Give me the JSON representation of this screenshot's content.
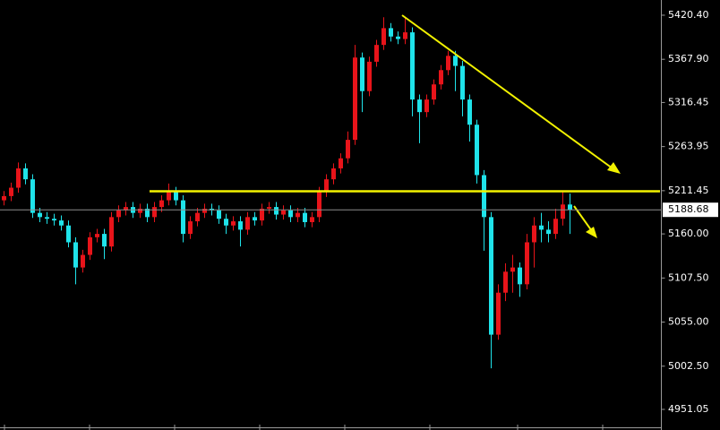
{
  "chart_data": {
    "type": "candlestick",
    "up_color": "#e8141a",
    "down_color": "#1fe3ea",
    "ylim": [
      4926.5,
      5438.5
    ],
    "yticks": [
      {
        "value": 5420.4,
        "label": "5420.40"
      },
      {
        "value": 5367.9,
        "label": "5367.90"
      },
      5316.45,
      5263.95,
      5211.45,
      {
        "value": 5160,
        "label": "5160.00"
      },
      {
        "value": 5107.5,
        "label": "5107.50"
      },
      {
        "value": 5055,
        "label": "5055.00"
      },
      {
        "value": 5002.5,
        "label": "5002.50"
      },
      4951.05
    ],
    "last_price": 5188.68,
    "open": [
      5200,
      5205,
      5215,
      5238,
      5225,
      5185,
      5180,
      5178,
      5176,
      5170,
      5150,
      5120,
      5135,
      5156,
      5160,
      5145,
      5180,
      5188,
      5192,
      5185,
      5190,
      5180,
      5192,
      5200,
      5210,
      5200,
      5160,
      5175,
      5185,
      5190,
      5188,
      5178,
      5170,
      5175,
      5165,
      5180,
      5176,
      5190,
      5192,
      5183,
      5188,
      5180,
      5185,
      5174,
      5180,
      5210,
      5225,
      5238,
      5250,
      5272,
      5370,
      5330,
      5365,
      5385,
      5405,
      5395,
      5392,
      5400,
      5320,
      5305,
      5320,
      5338,
      5355,
      5372,
      5360,
      5320,
      5290,
      5230,
      5180,
      5040,
      5090,
      5115,
      5120,
      5100,
      5150,
      5170,
      5165,
      5160,
      5178,
      5195
    ],
    "high": [
      5211,
      5221,
      5245,
      5244,
      5231,
      5191,
      5186,
      5184,
      5182,
      5176,
      5156,
      5141,
      5162,
      5166,
      5166,
      5186,
      5194,
      5198,
      5198,
      5196,
      5196,
      5198,
      5206,
      5220,
      5216,
      5206,
      5181,
      5191,
      5196,
      5196,
      5194,
      5184,
      5181,
      5181,
      5186,
      5186,
      5196,
      5198,
      5198,
      5194,
      5194,
      5191,
      5191,
      5186,
      5216,
      5231,
      5244,
      5256,
      5282,
      5385,
      5376,
      5371,
      5391,
      5418,
      5411,
      5401,
      5418,
      5406,
      5326,
      5326,
      5344,
      5361,
      5378,
      5378,
      5366,
      5326,
      5296,
      5236,
      5186,
      5100,
      5125,
      5135,
      5126,
      5160,
      5180,
      5185,
      5175,
      5190,
      5210,
      5208
    ],
    "low": [
      5194,
      5199,
      5209,
      5219,
      5179,
      5174,
      5172,
      5170,
      5164,
      5144,
      5100,
      5114,
      5129,
      5150,
      5130,
      5139,
      5174,
      5182,
      5179,
      5179,
      5174,
      5174,
      5186,
      5194,
      5194,
      5150,
      5154,
      5169,
      5179,
      5182,
      5172,
      5160,
      5164,
      5145,
      5159,
      5170,
      5170,
      5184,
      5177,
      5177,
      5174,
      5174,
      5168,
      5168,
      5174,
      5204,
      5219,
      5232,
      5244,
      5266,
      5305,
      5324,
      5359,
      5379,
      5389,
      5386,
      5386,
      5300,
      5268,
      5299,
      5314,
      5332,
      5349,
      5330,
      5300,
      5270,
      5220,
      5140,
      5000,
      5034,
      5080,
      5090,
      5085,
      5094,
      5120,
      5150,
      5150,
      5154,
      5170,
      5160
    ],
    "close": [
      5205,
      5215,
      5238,
      5225,
      5185,
      5180,
      5178,
      5176,
      5170,
      5150,
      5120,
      5135,
      5156,
      5160,
      5145,
      5180,
      5188,
      5192,
      5185,
      5190,
      5180,
      5192,
      5200,
      5210,
      5200,
      5160,
      5175,
      5185,
      5190,
      5188,
      5178,
      5170,
      5175,
      5165,
      5180,
      5176,
      5190,
      5192,
      5183,
      5188,
      5180,
      5185,
      5174,
      5180,
      5210,
      5225,
      5238,
      5250,
      5272,
      5370,
      5330,
      5365,
      5385,
      5405,
      5395,
      5392,
      5400,
      5320,
      5305,
      5320,
      5338,
      5355,
      5372,
      5360,
      5320,
      5290,
      5230,
      5180,
      5040,
      5090,
      5115,
      5120,
      5100,
      5150,
      5170,
      5165,
      5160,
      5178,
      5195,
      5188.68
    ]
  }
}
